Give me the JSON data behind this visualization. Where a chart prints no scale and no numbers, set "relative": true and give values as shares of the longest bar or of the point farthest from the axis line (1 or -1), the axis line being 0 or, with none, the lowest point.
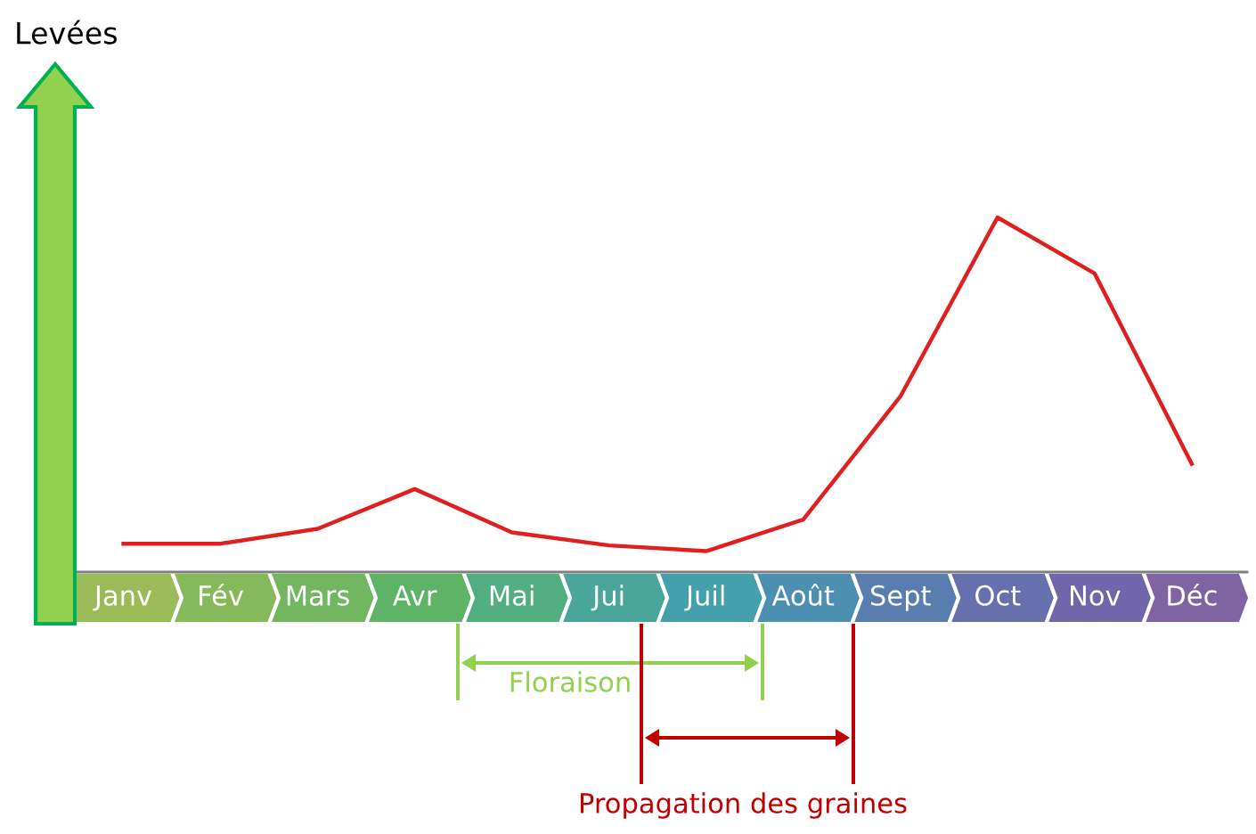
{
  "chart_data": {
    "type": "line",
    "relative": true,
    "annotations": [
      "Levées",
      "Floraison",
      "Propagation des graines"
    ],
    "categories": [
      "Janv",
      "Fév",
      "Mars",
      "Avr",
      "Mai",
      "Jui",
      "Juil",
      "Août",
      "Sept",
      "Oct",
      "Nov",
      "Déc"
    ],
    "colors": [
      "#9bbb59",
      "#86b95c",
      "#72b660",
      "#5eb366",
      "#52ad80",
      "#4aa69a",
      "#45a0ad",
      "#4d8fb0",
      "#5a7db0",
      "#6670ad",
      "#7266aa",
      "#8064a2"
    ],
    "series": [
      {
        "color": "#e02020",
        "values": [
          0.08,
          0.08,
          0.122,
          0.234,
          0.112,
          0.075,
          0.059,
          0.148,
          0.495,
          1,
          0.842,
          0.305
        ]
      }
    ],
    "line_style": "solid",
    "marker": "none"
  }
}
